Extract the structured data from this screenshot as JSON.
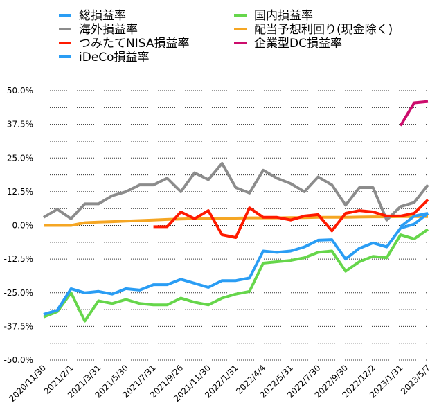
{
  "chart_data": {
    "type": "line",
    "title": "",
    "xlabel": "",
    "ylabel": "",
    "ylim": [
      -50,
      50
    ],
    "y_ticks": [
      "50.0%",
      "37.5%",
      "25.0%",
      "12.5%",
      "0.0%",
      "-12.5%",
      "-25.0%",
      "-37.5%",
      "-50.0%"
    ],
    "y_tick_values": [
      50,
      37.5,
      25,
      12.5,
      0,
      -12.5,
      -25,
      -37.5,
      -50
    ],
    "x_ticks": [
      "2020/11/30",
      "2021/2/1",
      "2021/3/31",
      "2021/5/30",
      "2021/7/31",
      "2021/9/26",
      "2021/11/30",
      "2022/1/31",
      "2022/4/4",
      "2022/5/31",
      "2022/7/30",
      "2022/9/30",
      "2022/12/2",
      "2023/1/31",
      "2023/5/7"
    ],
    "x_tick_positions": [
      0,
      2,
      4,
      6,
      8,
      10,
      12,
      14,
      16,
      18,
      20,
      22,
      24,
      26,
      28
    ],
    "x_count": 29,
    "grid": "dotted horizontal",
    "legend_position": "top",
    "series": [
      {
        "name": "総損益率",
        "color": "#2a9df4",
        "values": [
          -33,
          -31.5,
          -23.5,
          -25,
          -24.5,
          -25.5,
          -23.5,
          -24,
          -22,
          -22,
          -20,
          -21.5,
          -23,
          -20.5,
          -20.5,
          -19.5,
          -9.5,
          -10,
          -9.5,
          -8,
          -5.5,
          -5.3,
          -12.5,
          -8.5,
          -6.5,
          -8,
          -1,
          0.5,
          4.5
        ]
      },
      {
        "name": "海外損益率",
        "color": "#8c8c8c",
        "values": [
          3,
          6,
          2.5,
          8,
          8,
          11,
          12.5,
          15,
          15,
          17.5,
          12.5,
          19.5,
          17,
          23,
          14,
          12,
          20.5,
          17.5,
          15.5,
          12.5,
          18,
          15,
          7.5,
          14,
          14,
          2,
          7,
          8.5,
          15
        ]
      },
      {
        "name": "つみたてNISA損益率",
        "color": "#ff1a00",
        "values": [
          null,
          null,
          null,
          null,
          null,
          null,
          null,
          null,
          -0.5,
          -0.5,
          5,
          2.5,
          5.5,
          -3.5,
          -4.5,
          6.5,
          3,
          3,
          2,
          3.5,
          4,
          -2,
          4.5,
          5.5,
          5,
          3.5,
          3.5,
          4.5,
          9.5
        ]
      },
      {
        "name": "iDeCo損益率",
        "color": "#2a9df4",
        "values": [
          null,
          null,
          null,
          null,
          null,
          null,
          null,
          null,
          null,
          null,
          null,
          null,
          null,
          null,
          null,
          null,
          null,
          null,
          null,
          null,
          null,
          null,
          null,
          null,
          null,
          null,
          -0.5,
          3.5,
          4.5
        ]
      },
      {
        "name": "国内損益率",
        "color": "#66d64b",
        "values": [
          -34,
          -32,
          -25,
          -35.5,
          -28,
          -29,
          -27.5,
          -29,
          -29.5,
          -29.5,
          -27,
          -28.5,
          -29.5,
          -27,
          -25.5,
          -24.5,
          -14,
          -13.5,
          -13,
          -12,
          -10,
          -9.5,
          -17,
          -13.5,
          -11.5,
          -12,
          -3.5,
          -5,
          -1.5
        ]
      },
      {
        "name": "配当予想利回り(現金除く)",
        "color": "#f5a623",
        "values": [
          0,
          0,
          0,
          1,
          1.2,
          1.4,
          1.6,
          1.8,
          2,
          2.2,
          2.4,
          2.5,
          2.6,
          2.7,
          2.7,
          2.8,
          2.8,
          2.8,
          2.9,
          2.9,
          3,
          3,
          3,
          3.1,
          3.2,
          3.2,
          3.3,
          3.3,
          3.3
        ]
      },
      {
        "name": "企業型DC損益率",
        "color": "#cc0c6c",
        "values": [
          null,
          null,
          null,
          null,
          null,
          null,
          null,
          null,
          null,
          null,
          null,
          null,
          null,
          null,
          null,
          null,
          null,
          null,
          null,
          null,
          null,
          null,
          null,
          null,
          null,
          null,
          37,
          45.5,
          46
        ]
      }
    ]
  }
}
